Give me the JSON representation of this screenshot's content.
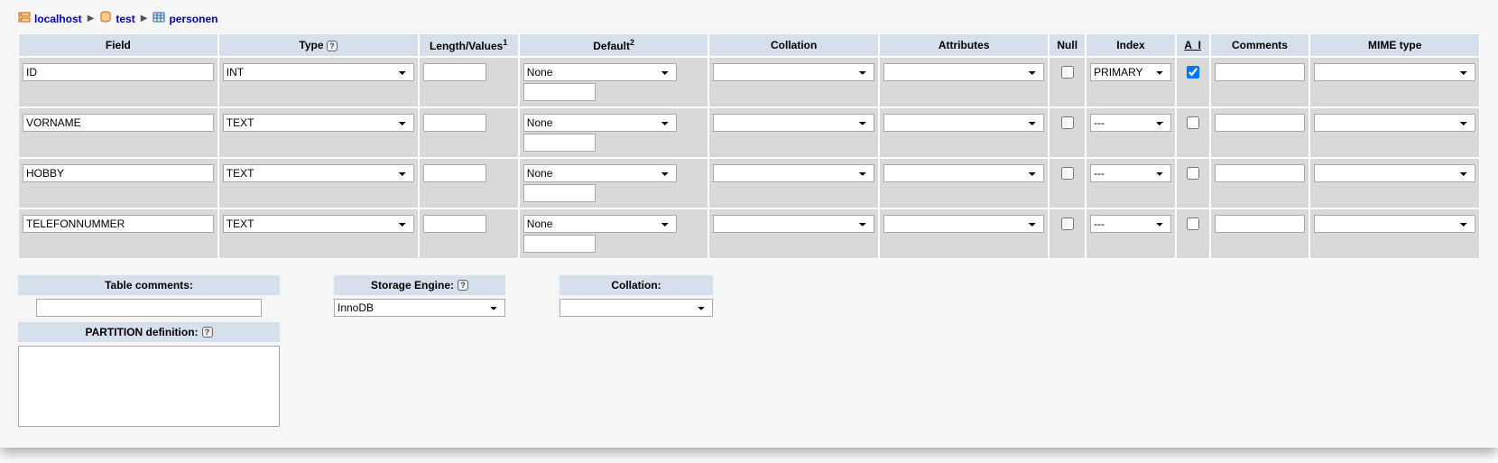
{
  "breadcrumb": {
    "server": "localhost",
    "database": "test",
    "table": "personen"
  },
  "headers": {
    "field": "Field",
    "type": "Type",
    "length": "Length/Values",
    "default": "Default",
    "collation": "Collation",
    "attributes": "Attributes",
    "null": "Null",
    "index": "Index",
    "ai": "A_I",
    "comments": "Comments",
    "mime": "MIME type"
  },
  "length_sup": "1",
  "default_sup": "2",
  "rows": [
    {
      "field": "ID",
      "type": "INT",
      "length": "",
      "default": "None",
      "default_sub": "",
      "collation": "",
      "attributes": "",
      "null": false,
      "index": "PRIMARY",
      "ai": true,
      "comments": "",
      "mime": ""
    },
    {
      "field": "VORNAME",
      "type": "TEXT",
      "length": "",
      "default": "None",
      "default_sub": "",
      "collation": "",
      "attributes": "",
      "null": false,
      "index": "---",
      "ai": false,
      "comments": "",
      "mime": ""
    },
    {
      "field": "HOBBY",
      "type": "TEXT",
      "length": "",
      "default": "None",
      "default_sub": "",
      "collation": "",
      "attributes": "",
      "null": false,
      "index": "---",
      "ai": false,
      "comments": "",
      "mime": ""
    },
    {
      "field": "TELEFONNUMMER",
      "type": "TEXT",
      "length": "",
      "default": "None",
      "default_sub": "",
      "collation": "",
      "attributes": "",
      "null": false,
      "index": "---",
      "ai": false,
      "comments": "",
      "mime": ""
    }
  ],
  "below": {
    "table_comments_label": "Table comments:",
    "table_comments_value": "",
    "storage_label": "Storage Engine:",
    "storage_value": "InnoDB",
    "collation_label": "Collation:",
    "collation_value": "",
    "partition_label": "PARTITION definition:",
    "partition_value": ""
  },
  "colors": {
    "header_bg": "#d6dfec",
    "cell_bg": "#d9d9d9",
    "page_bg": "#f6f6f6",
    "link": "#0000cc",
    "border": "#a9a9a9"
  }
}
